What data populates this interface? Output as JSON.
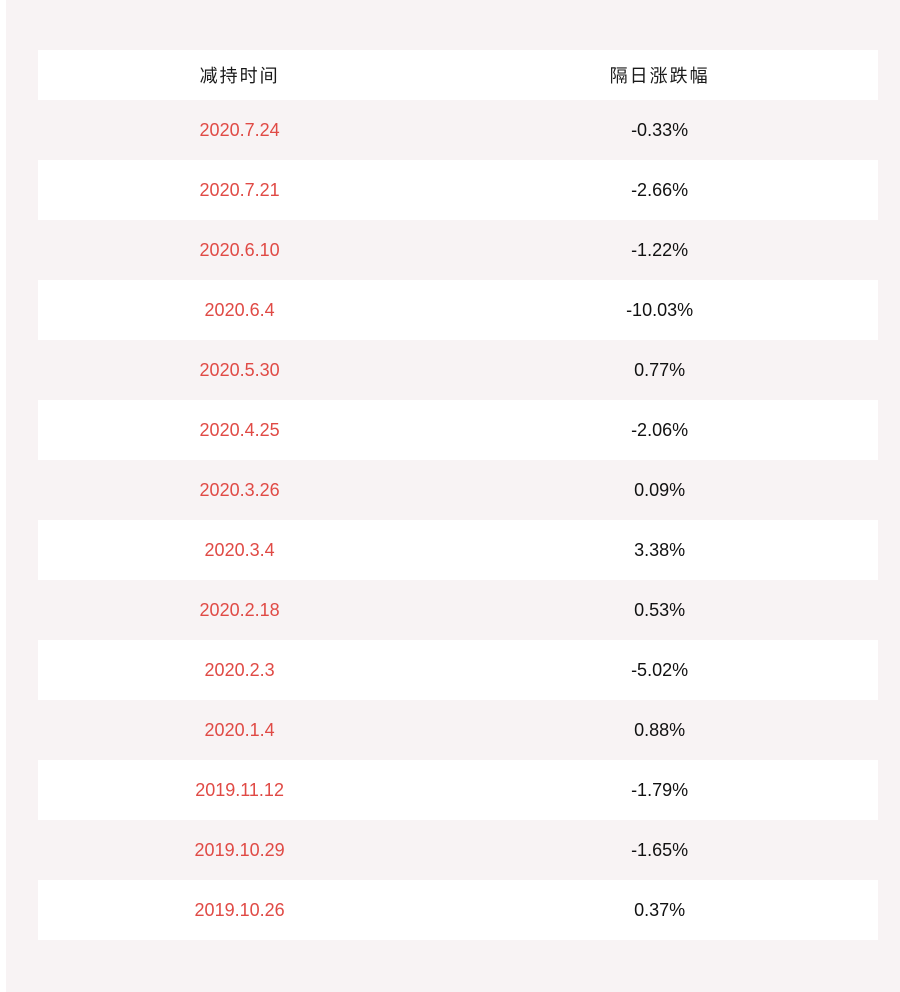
{
  "page": {
    "background_color": "#f8f3f4",
    "left_edge_strip_color": "#ffffff"
  },
  "colors": {
    "date_text": "#e04a45",
    "change_text": "#111111",
    "header_text": "#1a1a1a",
    "row_bg_white": "#ffffff",
    "row_bg_pink": "#f8f3f4"
  },
  "table": {
    "columns": [
      {
        "key": "date",
        "label": "减持时间"
      },
      {
        "key": "change",
        "label": "隔日涨跌幅"
      }
    ],
    "rows": [
      {
        "date": "2020.7.24",
        "change": "-0.33%"
      },
      {
        "date": "2020.7.21",
        "change": "-2.66%"
      },
      {
        "date": "2020.6.10",
        "change": "-1.22%"
      },
      {
        "date": "2020.6.4",
        "change": "-10.03%"
      },
      {
        "date": "2020.5.30",
        "change": "0.77%"
      },
      {
        "date": "2020.4.25",
        "change": "-2.06%"
      },
      {
        "date": "2020.3.26",
        "change": "0.09%"
      },
      {
        "date": "2020.3.4",
        "change": "3.38%"
      },
      {
        "date": "2020.2.18",
        "change": "0.53%"
      },
      {
        "date": "2020.2.3",
        "change": "-5.02%"
      },
      {
        "date": "2020.1.4",
        "change": "0.88%"
      },
      {
        "date": "2019.11.12",
        "change": "-1.79%"
      },
      {
        "date": "2019.10.29",
        "change": "-1.65%"
      },
      {
        "date": "2019.10.26",
        "change": "0.37%"
      }
    ]
  },
  "chart_data": {
    "type": "table",
    "title": "",
    "columns": [
      "减持时间",
      "隔日涨跌幅"
    ],
    "rows": [
      [
        "2020.7.24",
        "-0.33%"
      ],
      [
        "2020.7.21",
        "-2.66%"
      ],
      [
        "2020.6.10",
        "-1.22%"
      ],
      [
        "2020.6.4",
        "-10.03%"
      ],
      [
        "2020.5.30",
        "0.77%"
      ],
      [
        "2020.4.25",
        "-2.06%"
      ],
      [
        "2020.3.26",
        "0.09%"
      ],
      [
        "2020.3.4",
        "3.38%"
      ],
      [
        "2020.2.18",
        "0.53%"
      ],
      [
        "2020.2.3",
        "-5.02%"
      ],
      [
        "2020.1.4",
        "0.88%"
      ],
      [
        "2019.11.12",
        "-1.79%"
      ],
      [
        "2019.10.29",
        "-1.65%"
      ],
      [
        "2019.10.26",
        "0.37%"
      ]
    ],
    "change_values_numeric_percent": [
      -0.33,
      -2.66,
      -1.22,
      -10.03,
      0.77,
      -2.06,
      0.09,
      3.38,
      0.53,
      -5.02,
      0.88,
      -1.79,
      -1.65,
      0.37
    ]
  }
}
